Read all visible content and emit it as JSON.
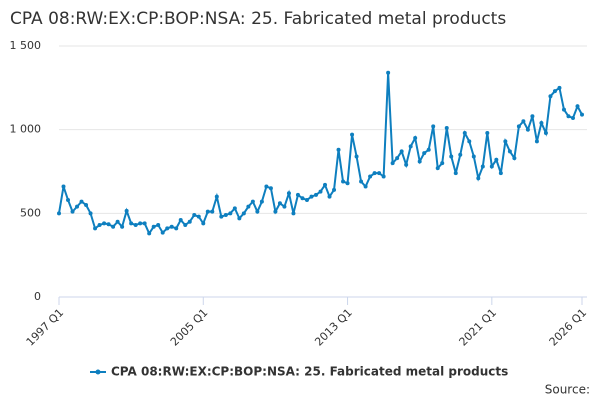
{
  "chart_data": {
    "type": "line",
    "title": "CPA 08:RW:EX:CP:BOP:NSA: 25. Fabricated metal products",
    "source": "Source:",
    "categories": [
      "1997 Q1",
      null,
      null,
      null,
      null,
      null,
      null,
      null,
      null,
      null,
      null,
      null,
      null,
      null,
      null,
      null,
      null,
      null,
      null,
      null,
      null,
      null,
      null,
      null,
      null,
      null,
      null,
      null,
      null,
      null,
      null,
      null,
      "2005 Q1",
      null,
      null,
      null,
      null,
      null,
      null,
      null,
      null,
      null,
      null,
      null,
      null,
      null,
      null,
      null,
      null,
      null,
      null,
      null,
      null,
      null,
      null,
      null,
      null,
      null,
      null,
      null,
      null,
      null,
      null,
      null,
      "2013 Q1",
      null,
      null,
      null,
      null,
      null,
      null,
      null,
      null,
      null,
      null,
      null,
      null,
      null,
      null,
      null,
      null,
      null,
      null,
      null,
      null,
      null,
      null,
      null,
      null,
      null,
      null,
      null,
      null,
      null,
      null,
      null,
      "2021 Q1",
      null,
      null,
      null,
      null,
      null,
      null,
      null,
      null,
      null,
      null,
      null,
      null,
      null,
      null,
      null,
      null,
      null,
      null,
      null,
      "2026 Q1"
    ],
    "series": [
      {
        "name": "CPA 08:RW:EX:CP:BOP:NSA: 25. Fabricated metal products",
        "color": "#0e7fbf",
        "values": [
          500,
          660,
          580,
          510,
          540,
          570,
          550,
          500,
          410,
          430,
          440,
          435,
          420,
          450,
          420,
          515,
          440,
          430,
          440,
          440,
          380,
          420,
          430,
          385,
          410,
          420,
          410,
          460,
          430,
          450,
          490,
          480,
          440,
          510,
          510,
          600,
          480,
          490,
          500,
          530,
          470,
          500,
          540,
          570,
          510,
          570,
          660,
          650,
          510,
          560,
          540,
          620,
          500,
          610,
          590,
          580,
          600,
          610,
          630,
          670,
          600,
          640,
          880,
          690,
          680,
          970,
          840,
          690,
          660,
          720,
          740,
          740,
          720,
          1340,
          800,
          830,
          870,
          790,
          900,
          950,
          810,
          860,
          880,
          1020,
          770,
          800,
          1010,
          840,
          740,
          850,
          980,
          930,
          840,
          710,
          780,
          980,
          780,
          820,
          740,
          930,
          870,
          830,
          1020,
          1050,
          1000,
          1080,
          930,
          1040,
          980,
          1200,
          1230,
          1250,
          1120,
          1080,
          1070,
          1140,
          1090
        ]
      }
    ],
    "ylim": [
      0,
      1500
    ],
    "yticks": [
      0,
      500,
      {
        "value": 1000,
        "label": "1 000"
      },
      {
        "value": 1500,
        "label": "1 500"
      }
    ],
    "grid": true
  }
}
